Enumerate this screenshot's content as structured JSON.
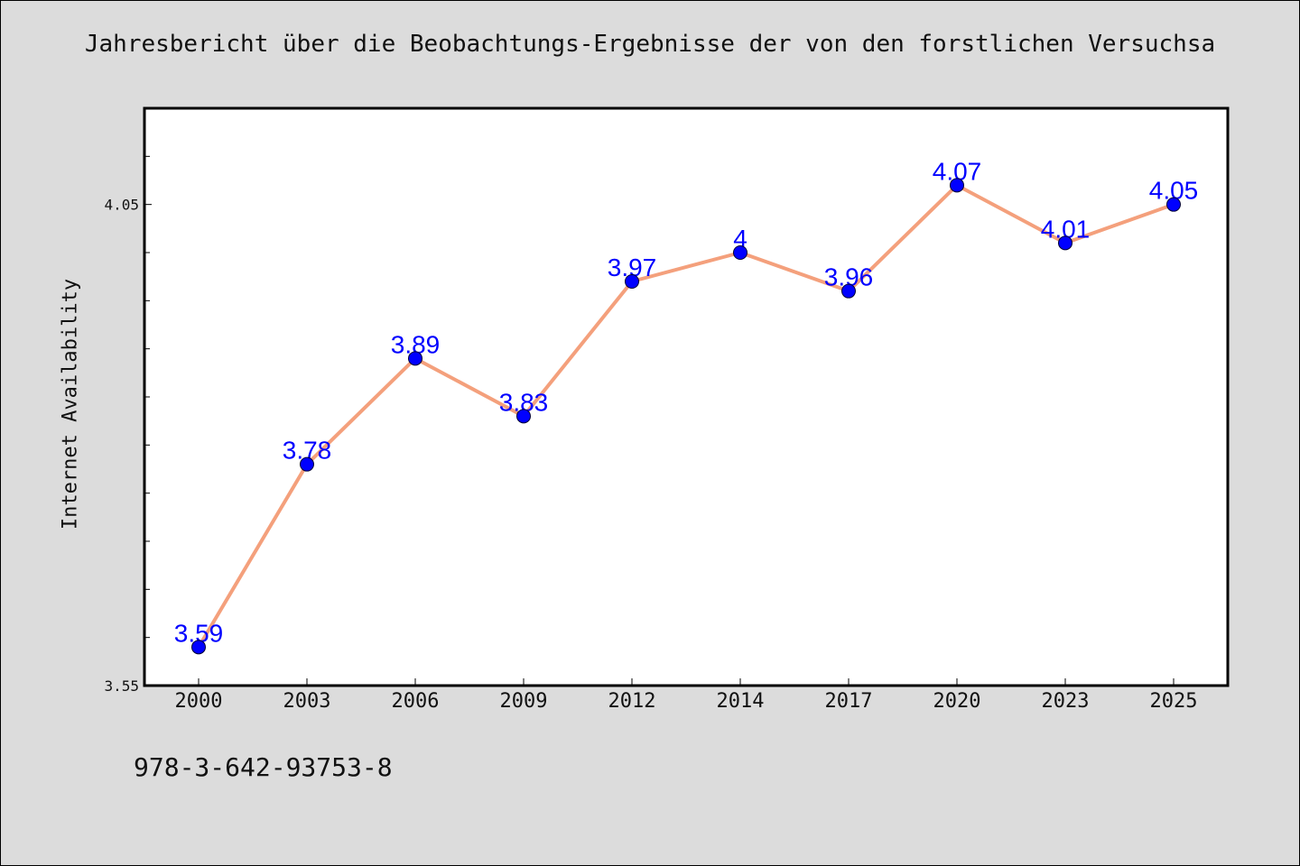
{
  "chart_data": {
    "type": "line",
    "title": "Jahresbericht über die Beobachtungs-Ergebnisse der von den forstlichen Versuchsa",
    "xlabel": "",
    "ylabel": "Internet Availability",
    "categories": [
      "2000",
      "2003",
      "2006",
      "2009",
      "2012",
      "2014",
      "2017",
      "2020",
      "2023",
      "2025"
    ],
    "series": [
      {
        "values": [
          3.59,
          3.78,
          3.89,
          3.83,
          3.97,
          4.0,
          3.96,
          4.07,
          4.01,
          4.05
        ],
        "labels": [
          "3.59",
          "3.78",
          "3.89",
          "3.83",
          "3.97",
          "4",
          "3.96",
          "4.07",
          "4.01",
          "4.05"
        ],
        "line_color": "#f4a07c",
        "marker_color": "#0000ff",
        "label_color": "#0000ff"
      }
    ],
    "yticks": [
      "3.55",
      "4.05"
    ],
    "ylim": [
      3.55,
      4.15
    ],
    "grid": false,
    "legend": "none"
  },
  "footer": {
    "isbn": "978-3-642-93753-8"
  }
}
